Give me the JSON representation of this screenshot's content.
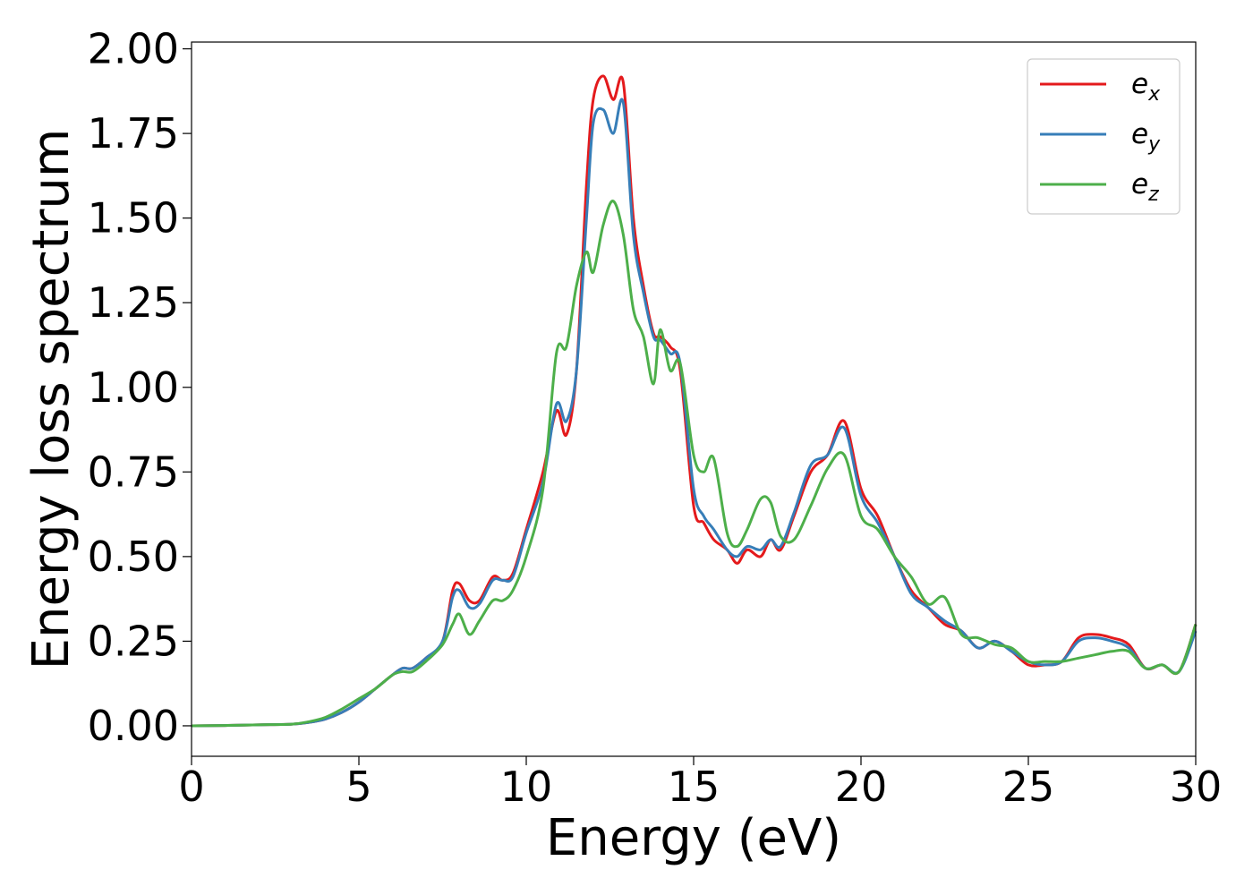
{
  "chart_data": {
    "type": "line",
    "title": "",
    "xlabel": "Energy (eV)",
    "ylabel": "Energy loss spectrum",
    "xlim": [
      0,
      30
    ],
    "ylim": [
      -0.09,
      2.02
    ],
    "xticks": [
      0,
      5,
      10,
      15,
      20,
      25,
      30
    ],
    "xtick_labels": [
      "0",
      "5",
      "10",
      "15",
      "20",
      "25",
      "30"
    ],
    "yticks": [
      0.0,
      0.25,
      0.5,
      0.75,
      1.0,
      1.25,
      1.5,
      1.75,
      2.0
    ],
    "ytick_labels": [
      "0.00",
      "0.25",
      "0.50",
      "0.75",
      "1.00",
      "1.25",
      "1.50",
      "1.75",
      "2.00"
    ],
    "grid": false,
    "legend_position": "top-right",
    "series": [
      {
        "name": "e_x",
        "legend_base": "e",
        "legend_sub": "x",
        "color": "#e41a1c",
        "x": [
          0,
          1,
          2,
          3,
          3.5,
          4.0,
          4.5,
          5.0,
          5.5,
          6.0,
          6.3,
          6.6,
          7.0,
          7.5,
          7.8,
          8.0,
          8.3,
          8.6,
          9.0,
          9.3,
          9.6,
          10.0,
          10.5,
          10.9,
          11.2,
          11.5,
          11.8,
          12.0,
          12.3,
          12.6,
          12.9,
          13.2,
          13.5,
          13.8,
          14.0,
          14.3,
          14.6,
          15.0,
          15.3,
          15.6,
          16.0,
          16.3,
          16.6,
          17.0,
          17.3,
          17.6,
          18.0,
          18.5,
          19.0,
          19.5,
          20.0,
          20.5,
          21.0,
          21.5,
          22.0,
          22.5,
          23.0,
          23.5,
          24.0,
          24.5,
          25.0,
          25.5,
          26.0,
          26.5,
          27.0,
          27.5,
          28.0,
          28.5,
          29.0,
          29.5,
          30.0
        ],
        "values": [
          0.0,
          0.001,
          0.003,
          0.005,
          0.01,
          0.02,
          0.04,
          0.07,
          0.11,
          0.15,
          0.17,
          0.17,
          0.2,
          0.25,
          0.4,
          0.42,
          0.37,
          0.37,
          0.44,
          0.43,
          0.45,
          0.58,
          0.75,
          0.93,
          0.86,
          1.05,
          1.6,
          1.85,
          1.92,
          1.85,
          1.9,
          1.5,
          1.3,
          1.16,
          1.15,
          1.12,
          1.05,
          0.65,
          0.6,
          0.55,
          0.52,
          0.48,
          0.52,
          0.5,
          0.55,
          0.52,
          0.62,
          0.75,
          0.8,
          0.9,
          0.7,
          0.62,
          0.5,
          0.4,
          0.35,
          0.3,
          0.28,
          0.23,
          0.25,
          0.22,
          0.18,
          0.18,
          0.19,
          0.26,
          0.27,
          0.26,
          0.24,
          0.17,
          0.18,
          0.16,
          0.3
        ]
      },
      {
        "name": "e_y",
        "legend_base": "e",
        "legend_sub": "y",
        "color": "#377eb8",
        "x": [
          0,
          1,
          2,
          3,
          3.5,
          4.0,
          4.5,
          5.0,
          5.5,
          6.0,
          6.3,
          6.6,
          7.0,
          7.5,
          7.8,
          8.0,
          8.3,
          8.6,
          9.0,
          9.3,
          9.6,
          10.0,
          10.5,
          10.9,
          11.2,
          11.5,
          11.8,
          12.0,
          12.3,
          12.6,
          12.9,
          13.2,
          13.5,
          13.8,
          14.0,
          14.3,
          14.6,
          15.0,
          15.3,
          15.6,
          16.0,
          16.3,
          16.6,
          17.0,
          17.3,
          17.6,
          18.0,
          18.5,
          19.0,
          19.5,
          20.0,
          20.5,
          21.0,
          21.5,
          22.0,
          22.5,
          23.0,
          23.5,
          24.0,
          24.5,
          25.0,
          25.5,
          26.0,
          26.5,
          27.0,
          27.5,
          28.0,
          28.5,
          29.0,
          29.5,
          30.0
        ],
        "values": [
          0.0,
          0.001,
          0.003,
          0.005,
          0.01,
          0.02,
          0.04,
          0.07,
          0.11,
          0.15,
          0.17,
          0.17,
          0.2,
          0.25,
          0.38,
          0.4,
          0.35,
          0.36,
          0.43,
          0.43,
          0.44,
          0.57,
          0.72,
          0.95,
          0.9,
          1.05,
          1.5,
          1.78,
          1.82,
          1.75,
          1.84,
          1.45,
          1.28,
          1.15,
          1.14,
          1.1,
          1.07,
          0.7,
          0.62,
          0.58,
          0.52,
          0.5,
          0.53,
          0.52,
          0.55,
          0.53,
          0.63,
          0.77,
          0.8,
          0.88,
          0.68,
          0.6,
          0.5,
          0.39,
          0.35,
          0.31,
          0.28,
          0.23,
          0.25,
          0.22,
          0.19,
          0.18,
          0.19,
          0.25,
          0.26,
          0.25,
          0.23,
          0.17,
          0.18,
          0.16,
          0.28
        ]
      },
      {
        "name": "e_z",
        "legend_base": "e",
        "legend_sub": "z",
        "color": "#4daf4a",
        "x": [
          0,
          1,
          2,
          3,
          3.5,
          4.0,
          4.5,
          5.0,
          5.5,
          6.0,
          6.3,
          6.6,
          7.0,
          7.5,
          7.8,
          8.0,
          8.3,
          8.6,
          9.0,
          9.3,
          9.6,
          10.0,
          10.5,
          10.9,
          11.2,
          11.5,
          11.8,
          12.0,
          12.3,
          12.6,
          12.9,
          13.2,
          13.5,
          13.8,
          14.0,
          14.3,
          14.6,
          15.0,
          15.3,
          15.6,
          16.0,
          16.3,
          16.6,
          17.0,
          17.3,
          17.6,
          18.0,
          18.5,
          19.0,
          19.5,
          20.0,
          20.5,
          21.0,
          21.5,
          22.0,
          22.5,
          23.0,
          23.5,
          24.0,
          24.5,
          25.0,
          25.5,
          26.0,
          26.5,
          27.0,
          27.5,
          28.0,
          28.5,
          29.0,
          29.5,
          30.0
        ],
        "values": [
          0.0,
          0.001,
          0.003,
          0.005,
          0.012,
          0.025,
          0.05,
          0.08,
          0.11,
          0.15,
          0.16,
          0.16,
          0.19,
          0.24,
          0.3,
          0.33,
          0.27,
          0.31,
          0.37,
          0.37,
          0.4,
          0.5,
          0.7,
          1.1,
          1.12,
          1.3,
          1.4,
          1.34,
          1.48,
          1.55,
          1.45,
          1.23,
          1.15,
          1.01,
          1.17,
          1.05,
          1.07,
          0.8,
          0.75,
          0.79,
          0.57,
          0.53,
          0.58,
          0.67,
          0.66,
          0.56,
          0.55,
          0.65,
          0.76,
          0.8,
          0.62,
          0.58,
          0.5,
          0.44,
          0.36,
          0.38,
          0.27,
          0.26,
          0.24,
          0.23,
          0.19,
          0.19,
          0.19,
          0.2,
          0.21,
          0.22,
          0.22,
          0.17,
          0.18,
          0.16,
          0.3
        ]
      }
    ]
  }
}
